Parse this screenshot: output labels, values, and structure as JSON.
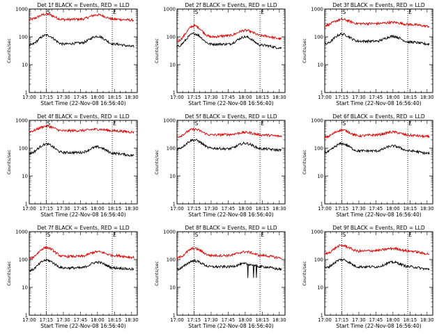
{
  "figure": {
    "xlabel": "Start Time (22-Nov-08 16:56:40)",
    "ylabel": "Counts/sec",
    "x_tick_labels": [
      "17:00",
      "17:15",
      "17:30",
      "17:45",
      "18:00",
      "18:15",
      "18:30"
    ],
    "y_tick_labels": [
      "1",
      "10",
      "100",
      "1000"
    ],
    "colors": {
      "events": "#000000",
      "lld": "#e00000"
    }
  },
  "chart_data": [
    {
      "type": "line",
      "title": "Det 1f BLACK = Events, RED = LLD",
      "xlim": [
        "17:00",
        "18:35"
      ],
      "ylim": [
        1,
        1000
      ],
      "yscale": "log",
      "markers": {
        "start_label": "S",
        "end_label": "E",
        "start_time": "17:15",
        "end_time": "18:13"
      },
      "series": [
        {
          "color": "#e00000",
          "x": [
            "17:00",
            "17:15",
            "17:30",
            "17:45",
            "18:00",
            "18:15",
            "18:32"
          ],
          "values": [
            420,
            650,
            420,
            430,
            620,
            430,
            400
          ]
        },
        {
          "color": "#000000",
          "x": [
            "17:00",
            "17:15",
            "17:30",
            "17:45",
            "18:00",
            "18:15",
            "18:32"
          ],
          "values": [
            50,
            115,
            55,
            60,
            105,
            55,
            45
          ]
        }
      ]
    },
    {
      "type": "line",
      "title": "Det 2f BLACK = Events, RED = LLD",
      "xlim": [
        "17:00",
        "18:35"
      ],
      "ylim": [
        1,
        1000
      ],
      "yscale": "log",
      "markers": {
        "start_label": "S",
        "end_label": "E",
        "start_time": "17:15",
        "end_time": "18:13"
      },
      "series": [
        {
          "color": "#e00000",
          "x": [
            "17:00",
            "17:15",
            "17:30",
            "17:45",
            "18:00",
            "18:15",
            "18:32"
          ],
          "values": [
            70,
            250,
            100,
            110,
            170,
            110,
            85
          ]
        },
        {
          "color": "#000000",
          "x": [
            "17:00",
            "17:15",
            "17:30",
            "17:45",
            "18:00",
            "18:15",
            "18:32"
          ],
          "values": [
            45,
            130,
            55,
            55,
            100,
            50,
            40
          ]
        }
      ]
    },
    {
      "type": "line",
      "title": "Det 3f BLACK = Events, RED = LLD",
      "xlim": [
        "17:00",
        "18:35"
      ],
      "ylim": [
        1,
        1000
      ],
      "yscale": "log",
      "markers": {
        "start_label": "S",
        "end_label": "E",
        "start_time": "17:15",
        "end_time": "18:13"
      },
      "series": [
        {
          "color": "#e00000",
          "x": [
            "17:00",
            "17:15",
            "17:30",
            "17:45",
            "18:00",
            "18:15",
            "18:32"
          ],
          "values": [
            260,
            420,
            300,
            300,
            330,
            280,
            240
          ]
        },
        {
          "color": "#000000",
          "x": [
            "17:00",
            "17:15",
            "17:30",
            "17:45",
            "18:00",
            "18:15",
            "18:32"
          ],
          "values": [
            55,
            125,
            70,
            70,
            105,
            65,
            55
          ]
        }
      ]
    },
    {
      "type": "line",
      "title": "Det 4f BLACK = Events, RED = LLD",
      "xlim": [
        "17:00",
        "18:35"
      ],
      "ylim": [
        1,
        1000
      ],
      "yscale": "log",
      "markers": {
        "start_label": "S",
        "end_label": "E",
        "start_time": "17:15",
        "end_time": "18:13"
      },
      "series": [
        {
          "color": "#e00000",
          "x": [
            "17:00",
            "17:15",
            "17:30",
            "17:45",
            "18:00",
            "18:15",
            "18:32"
          ],
          "values": [
            400,
            620,
            420,
            430,
            480,
            420,
            380
          ]
        },
        {
          "color": "#000000",
          "x": [
            "17:00",
            "17:15",
            "17:30",
            "17:45",
            "18:00",
            "18:15",
            "18:32"
          ],
          "values": [
            65,
            140,
            70,
            70,
            110,
            65,
            55
          ]
        }
      ]
    },
    {
      "type": "line",
      "title": "Det 5f BLACK = Events, RED = LLD",
      "xlim": [
        "17:00",
        "18:35"
      ],
      "ylim": [
        1,
        1000
      ],
      "yscale": "log",
      "markers": {
        "start_label": "S",
        "end_label": "E",
        "start_time": "17:15",
        "end_time": "18:13"
      },
      "series": [
        {
          "color": "#e00000",
          "x": [
            "17:00",
            "17:15",
            "17:30",
            "17:45",
            "18:00",
            "18:15",
            "18:32"
          ],
          "values": [
            260,
            480,
            300,
            310,
            370,
            300,
            270
          ]
        },
        {
          "color": "#000000",
          "x": [
            "17:00",
            "17:15",
            "17:30",
            "17:45",
            "18:00",
            "18:15",
            "18:32"
          ],
          "values": [
            95,
            200,
            100,
            95,
            150,
            95,
            85
          ]
        }
      ]
    },
    {
      "type": "line",
      "title": "Det 6f BLACK = Events, RED = LLD",
      "xlim": [
        "17:00",
        "18:35"
      ],
      "ylim": [
        1,
        1000
      ],
      "yscale": "log",
      "markers": {
        "start_label": "S",
        "end_label": "E",
        "start_time": "17:15",
        "end_time": "18:13"
      },
      "series": [
        {
          "color": "#e00000",
          "x": [
            "17:00",
            "17:15",
            "17:30",
            "17:45",
            "18:00",
            "18:15",
            "18:32"
          ],
          "values": [
            250,
            450,
            280,
            300,
            380,
            290,
            260
          ]
        },
        {
          "color": "#000000",
          "x": [
            "17:00",
            "17:15",
            "17:30",
            "17:45",
            "18:00",
            "18:15",
            "18:32"
          ],
          "values": [
            70,
            145,
            80,
            80,
            120,
            80,
            65
          ]
        }
      ]
    },
    {
      "type": "line",
      "title": "Det 7f BLACK = Events, RED = LLD",
      "xlim": [
        "17:00",
        "18:35"
      ],
      "ylim": [
        1,
        1000
      ],
      "yscale": "log",
      "markers": {
        "start_label": "S",
        "end_label": "E",
        "start_time": "17:15",
        "end_time": "18:13"
      },
      "series": [
        {
          "color": "#e00000",
          "x": [
            "17:00",
            "17:15",
            "17:30",
            "17:45",
            "18:00",
            "18:15",
            "18:32"
          ],
          "values": [
            110,
            270,
            130,
            130,
            190,
            140,
            120
          ]
        },
        {
          "color": "#000000",
          "x": [
            "17:00",
            "17:15",
            "17:30",
            "17:45",
            "18:00",
            "18:15",
            "18:32"
          ],
          "values": [
            40,
            95,
            50,
            50,
            80,
            50,
            45
          ]
        }
      ]
    },
    {
      "type": "line",
      "title": "Det 8f BLACK = Events, RED = LLD",
      "xlim": [
        "17:00",
        "18:35"
      ],
      "ylim": [
        1,
        1000
      ],
      "yscale": "log",
      "markers": {
        "start_label": "S",
        "end_label": "E",
        "start_time": "17:15",
        "end_time": "18:13"
      },
      "series": [
        {
          "color": "#e00000",
          "x": [
            "17:00",
            "17:15",
            "17:30",
            "17:45",
            "18:00",
            "18:15",
            "18:32"
          ],
          "values": [
            115,
            250,
            140,
            140,
            190,
            140,
            115
          ]
        },
        {
          "color": "#000000",
          "x": [
            "17:00",
            "17:15",
            "17:30",
            "17:45",
            "18:00",
            "18:15",
            "18:32"
          ],
          "values": [
            45,
            90,
            55,
            55,
            70,
            55,
            45
          ]
        }
      ]
    },
    {
      "type": "line",
      "title": "Det 9f BLACK = Events, RED = LLD",
      "xlim": [
        "17:00",
        "18:35"
      ],
      "ylim": [
        1,
        1000
      ],
      "yscale": "log",
      "markers": {
        "start_label": "S",
        "end_label": "E",
        "start_time": "17:15",
        "end_time": "18:13"
      },
      "series": [
        {
          "color": "#e00000",
          "x": [
            "17:00",
            "17:15",
            "17:30",
            "17:45",
            "18:00",
            "18:15",
            "18:32"
          ],
          "values": [
            160,
            320,
            200,
            210,
            250,
            200,
            160
          ]
        },
        {
          "color": "#000000",
          "x": [
            "17:00",
            "17:15",
            "17:30",
            "17:45",
            "18:00",
            "18:15",
            "18:32"
          ],
          "values": [
            50,
            100,
            55,
            55,
            80,
            55,
            45
          ]
        }
      ]
    }
  ]
}
